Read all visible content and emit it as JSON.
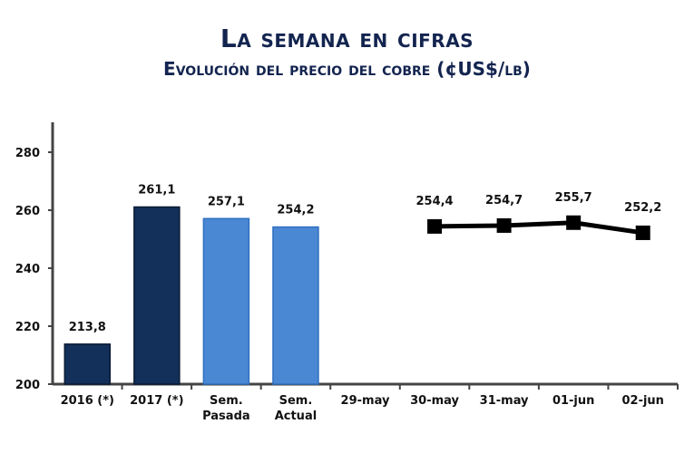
{
  "chart_data": {
    "type": "bar+line",
    "title": "La semana en cifras",
    "subtitle": "Evolución del precio del cobre  (¢US$/lb)",
    "categories": [
      "2016 (*)",
      "2017 (*)",
      "Sem. Pasada",
      "Sem. Actual",
      "29-may",
      "30-may",
      "31-may",
      "01-jun",
      "02-jun"
    ],
    "bars": [
      {
        "category": "2016 (*)",
        "value": 213.8,
        "label": "213,8",
        "color": "#13305a"
      },
      {
        "category": "2017 (*)",
        "value": 261.1,
        "label": "261,1",
        "color": "#13305a"
      },
      {
        "category": "Sem. Pasada",
        "value": 257.1,
        "label": "257,1",
        "color": "#4a88d4"
      },
      {
        "category": "Sem. Actual",
        "value": 254.2,
        "label": "254,2",
        "color": "#4a88d4"
      }
    ],
    "line": {
      "color": "#000000",
      "marker": "square",
      "points": [
        {
          "category": "30-may",
          "value": 254.4,
          "label": "254,4"
        },
        {
          "category": "31-may",
          "value": 254.7,
          "label": "254,7"
        },
        {
          "category": "01-jun",
          "value": 255.7,
          "label": "255,7"
        },
        {
          "category": "02-jun",
          "value": 252.2,
          "label": "252,2"
        }
      ]
    },
    "ylim": [
      200,
      290
    ],
    "yticks": [
      200,
      220,
      240,
      260,
      280
    ],
    "grid": false,
    "legend": "none"
  }
}
